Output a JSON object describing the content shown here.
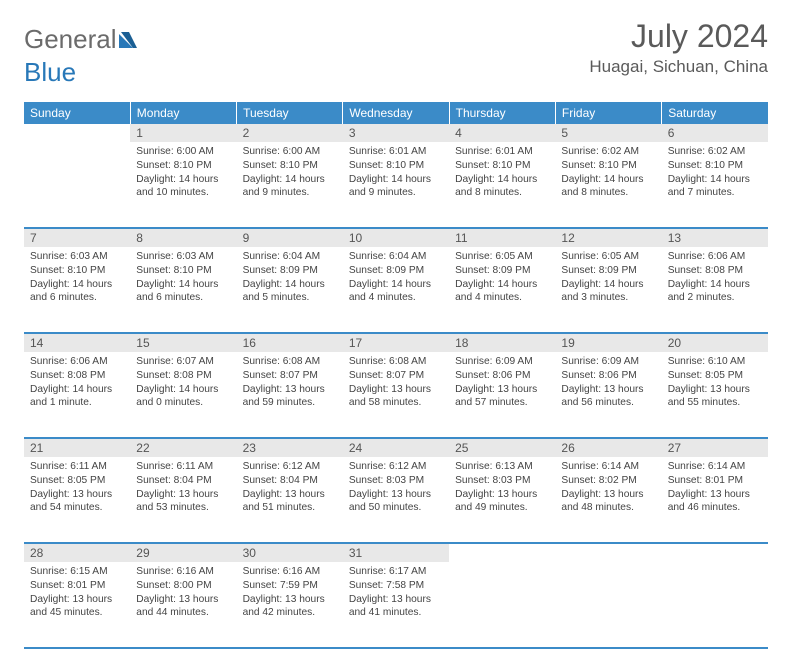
{
  "logo": {
    "text1": "General",
    "text2": "Blue"
  },
  "title": "July 2024",
  "location": "Huagai, Sichuan, China",
  "colors": {
    "header_bg": "#3b8bc8",
    "header_fg": "#ffffff",
    "daynum_bg": "#e8e8e8",
    "rule": "#3b8bc8",
    "text": "#444444",
    "logo_gray": "#6b6b6b",
    "logo_blue": "#2878b8"
  },
  "weekdays": [
    "Sunday",
    "Monday",
    "Tuesday",
    "Wednesday",
    "Thursday",
    "Friday",
    "Saturday"
  ],
  "layout": {
    "first_weekday_offset": 1,
    "days_in_month": 31
  },
  "days": {
    "1": {
      "sunrise": "6:00 AM",
      "sunset": "8:10 PM",
      "daylight": "14 hours and 10 minutes."
    },
    "2": {
      "sunrise": "6:00 AM",
      "sunset": "8:10 PM",
      "daylight": "14 hours and 9 minutes."
    },
    "3": {
      "sunrise": "6:01 AM",
      "sunset": "8:10 PM",
      "daylight": "14 hours and 9 minutes."
    },
    "4": {
      "sunrise": "6:01 AM",
      "sunset": "8:10 PM",
      "daylight": "14 hours and 8 minutes."
    },
    "5": {
      "sunrise": "6:02 AM",
      "sunset": "8:10 PM",
      "daylight": "14 hours and 8 minutes."
    },
    "6": {
      "sunrise": "6:02 AM",
      "sunset": "8:10 PM",
      "daylight": "14 hours and 7 minutes."
    },
    "7": {
      "sunrise": "6:03 AM",
      "sunset": "8:10 PM",
      "daylight": "14 hours and 6 minutes."
    },
    "8": {
      "sunrise": "6:03 AM",
      "sunset": "8:10 PM",
      "daylight": "14 hours and 6 minutes."
    },
    "9": {
      "sunrise": "6:04 AM",
      "sunset": "8:09 PM",
      "daylight": "14 hours and 5 minutes."
    },
    "10": {
      "sunrise": "6:04 AM",
      "sunset": "8:09 PM",
      "daylight": "14 hours and 4 minutes."
    },
    "11": {
      "sunrise": "6:05 AM",
      "sunset": "8:09 PM",
      "daylight": "14 hours and 4 minutes."
    },
    "12": {
      "sunrise": "6:05 AM",
      "sunset": "8:09 PM",
      "daylight": "14 hours and 3 minutes."
    },
    "13": {
      "sunrise": "6:06 AM",
      "sunset": "8:08 PM",
      "daylight": "14 hours and 2 minutes."
    },
    "14": {
      "sunrise": "6:06 AM",
      "sunset": "8:08 PM",
      "daylight": "14 hours and 1 minute."
    },
    "15": {
      "sunrise": "6:07 AM",
      "sunset": "8:08 PM",
      "daylight": "14 hours and 0 minutes."
    },
    "16": {
      "sunrise": "6:08 AM",
      "sunset": "8:07 PM",
      "daylight": "13 hours and 59 minutes."
    },
    "17": {
      "sunrise": "6:08 AM",
      "sunset": "8:07 PM",
      "daylight": "13 hours and 58 minutes."
    },
    "18": {
      "sunrise": "6:09 AM",
      "sunset": "8:06 PM",
      "daylight": "13 hours and 57 minutes."
    },
    "19": {
      "sunrise": "6:09 AM",
      "sunset": "8:06 PM",
      "daylight": "13 hours and 56 minutes."
    },
    "20": {
      "sunrise": "6:10 AM",
      "sunset": "8:05 PM",
      "daylight": "13 hours and 55 minutes."
    },
    "21": {
      "sunrise": "6:11 AM",
      "sunset": "8:05 PM",
      "daylight": "13 hours and 54 minutes."
    },
    "22": {
      "sunrise": "6:11 AM",
      "sunset": "8:04 PM",
      "daylight": "13 hours and 53 minutes."
    },
    "23": {
      "sunrise": "6:12 AM",
      "sunset": "8:04 PM",
      "daylight": "13 hours and 51 minutes."
    },
    "24": {
      "sunrise": "6:12 AM",
      "sunset": "8:03 PM",
      "daylight": "13 hours and 50 minutes."
    },
    "25": {
      "sunrise": "6:13 AM",
      "sunset": "8:03 PM",
      "daylight": "13 hours and 49 minutes."
    },
    "26": {
      "sunrise": "6:14 AM",
      "sunset": "8:02 PM",
      "daylight": "13 hours and 48 minutes."
    },
    "27": {
      "sunrise": "6:14 AM",
      "sunset": "8:01 PM",
      "daylight": "13 hours and 46 minutes."
    },
    "28": {
      "sunrise": "6:15 AM",
      "sunset": "8:01 PM",
      "daylight": "13 hours and 45 minutes."
    },
    "29": {
      "sunrise": "6:16 AM",
      "sunset": "8:00 PM",
      "daylight": "13 hours and 44 minutes."
    },
    "30": {
      "sunrise": "6:16 AM",
      "sunset": "7:59 PM",
      "daylight": "13 hours and 42 minutes."
    },
    "31": {
      "sunrise": "6:17 AM",
      "sunset": "7:58 PM",
      "daylight": "13 hours and 41 minutes."
    }
  },
  "labels": {
    "sunrise": "Sunrise: ",
    "sunset": "Sunset: ",
    "daylight": "Daylight: "
  }
}
